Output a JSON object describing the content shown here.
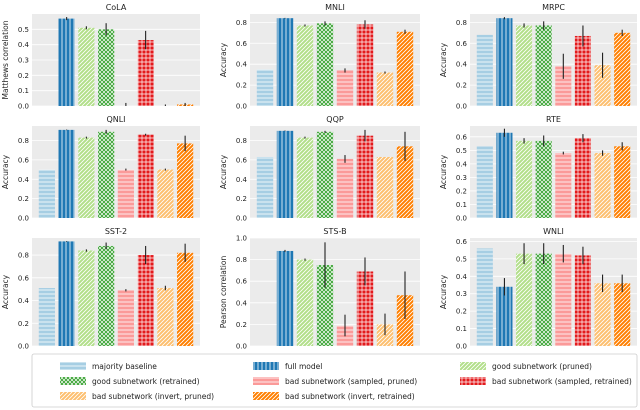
{
  "chart_data": {
    "type": "bar",
    "figure": "GLUE task results: subnetwork comparison (3x3 grid of bar charts)",
    "legend": {
      "placement": "bottom",
      "entries": [
        {
          "key": "maj",
          "label": "majority baseline"
        },
        {
          "key": "full",
          "label": "full model"
        },
        {
          "key": "good_p",
          "label": "good subnetwork (pruned)"
        },
        {
          "key": "good_r",
          "label": "good subnetwork (retrained)"
        },
        {
          "key": "bad_p",
          "label": "bad subnetwork (sampled, pruned)"
        },
        {
          "key": "bad_r",
          "label": "bad subnetwork (sampled, retrained)"
        },
        {
          "key": "inv_p",
          "label": "bad subnetwork (invert, pruned)"
        },
        {
          "key": "inv_r",
          "label": "bad subnetwork (invert, retrained)"
        }
      ]
    },
    "styles": {
      "maj": {
        "color": "#a6cee3",
        "hatch": "h"
      },
      "full": {
        "color": "#1f78b4",
        "hatch": "v"
      },
      "good_p": {
        "color": "#b2df8a",
        "hatch": "d"
      },
      "good_r": {
        "color": "#33a02c",
        "hatch": "x"
      },
      "bad_p": {
        "color": "#fb9a99",
        "hatch": "h"
      },
      "bad_r": {
        "color": "#e31a1c",
        "hatch": "g"
      },
      "inv_p": {
        "color": "#fdbf6f",
        "hatch": "d"
      },
      "inv_r": {
        "color": "#ff7f00",
        "hatch": "d"
      }
    },
    "panels": [
      {
        "title": "CoLA",
        "ylabel": "Matthews correlation",
        "ylim": [
          0,
          0.6
        ],
        "yticks": [
          "0.0",
          "0.1",
          "0.2",
          "0.3",
          "0.4",
          "0.5"
        ],
        "tick_values": [
          0,
          0.1,
          0.2,
          0.3,
          0.4,
          0.5
        ],
        "values": {
          "maj": 0.0,
          "full": 0.57,
          "good_p": 0.51,
          "good_r": 0.5,
          "bad_p": 0.0,
          "bad_r": 0.43,
          "inv_p": 0.0,
          "inv_r": 0.01
        },
        "err": {
          "maj": 0,
          "full": 0.01,
          "good_p": 0.01,
          "good_r": 0.04,
          "bad_p": 0.02,
          "bad_r": 0.06,
          "inv_p": 0.01,
          "inv_r": 0.01
        }
      },
      {
        "title": "MNLI",
        "ylabel": "Accuracy",
        "ylim": [
          0,
          0.88
        ],
        "yticks": [
          "0.0",
          "0.2",
          "0.4",
          "0.6",
          "0.8"
        ],
        "tick_values": [
          0,
          0.2,
          0.4,
          0.6,
          0.8
        ],
        "values": {
          "maj": 0.35,
          "full": 0.84,
          "good_p": 0.77,
          "good_r": 0.79,
          "bad_p": 0.34,
          "bad_r": 0.78,
          "inv_p": 0.32,
          "inv_r": 0.71
        },
        "err": {
          "maj": 0,
          "full": 0.003,
          "good_p": 0.01,
          "good_r": 0.02,
          "bad_p": 0.02,
          "bad_r": 0.04,
          "inv_p": 0.01,
          "inv_r": 0.02
        }
      },
      {
        "title": "MRPC",
        "ylabel": "Accuracy",
        "ylim": [
          0,
          0.88
        ],
        "yticks": [
          "0.0",
          "0.2",
          "0.4",
          "0.6",
          "0.8"
        ],
        "tick_values": [
          0,
          0.2,
          0.4,
          0.6,
          0.8
        ],
        "values": {
          "maj": 0.68,
          "full": 0.84,
          "good_p": 0.77,
          "good_r": 0.77,
          "bad_p": 0.38,
          "bad_r": 0.67,
          "inv_p": 0.39,
          "inv_r": 0.7
        },
        "err": {
          "maj": 0,
          "full": 0.01,
          "good_p": 0.02,
          "good_r": 0.04,
          "bad_p": 0.12,
          "bad_r": 0.1,
          "inv_p": 0.12,
          "inv_r": 0.03
        }
      },
      {
        "title": "QNLI",
        "ylabel": "Accuracy",
        "ylim": [
          0,
          0.95
        ],
        "yticks": [
          "0.0",
          "0.2",
          "0.4",
          "0.6",
          "0.8"
        ],
        "tick_values": [
          0,
          0.2,
          0.4,
          0.6,
          0.8
        ],
        "values": {
          "maj": 0.5,
          "full": 0.91,
          "good_p": 0.83,
          "good_r": 0.89,
          "bad_p": 0.5,
          "bad_r": 0.86,
          "inv_p": 0.5,
          "inv_r": 0.77
        },
        "err": {
          "maj": 0,
          "full": 0.003,
          "good_p": 0.01,
          "good_r": 0.02,
          "bad_p": 0.01,
          "bad_r": 0.01,
          "inv_p": 0.01,
          "inv_r": 0.08
        }
      },
      {
        "title": "QQP",
        "ylabel": "Accuracy",
        "ylim": [
          0,
          0.95
        ],
        "yticks": [
          "0.0",
          "0.2",
          "0.4",
          "0.6",
          "0.8"
        ],
        "tick_values": [
          0,
          0.2,
          0.4,
          0.6,
          0.8
        ],
        "values": {
          "maj": 0.63,
          "full": 0.9,
          "good_p": 0.83,
          "good_r": 0.89,
          "bad_p": 0.61,
          "bad_r": 0.85,
          "inv_p": 0.63,
          "inv_r": 0.74
        },
        "err": {
          "maj": 0,
          "full": 0.003,
          "good_p": 0.01,
          "good_r": 0.01,
          "bad_p": 0.04,
          "bad_r": 0.06,
          "inv_p": 0.0,
          "inv_r": 0.15
        }
      },
      {
        "title": "RTE",
        "ylabel": "Accuracy",
        "ylim": [
          0,
          0.68
        ],
        "yticks": [
          "0.0",
          "0.1",
          "0.2",
          "0.3",
          "0.4",
          "0.5",
          "0.6"
        ],
        "tick_values": [
          0,
          0.1,
          0.2,
          0.3,
          0.4,
          0.5,
          0.6
        ],
        "values": {
          "maj": 0.53,
          "full": 0.63,
          "good_p": 0.57,
          "good_r": 0.57,
          "bad_p": 0.48,
          "bad_r": 0.59,
          "inv_p": 0.48,
          "inv_r": 0.53
        },
        "err": {
          "maj": 0,
          "full": 0.03,
          "good_p": 0.02,
          "good_r": 0.04,
          "bad_p": 0.01,
          "bad_r": 0.03,
          "inv_p": 0.02,
          "inv_r": 0.03
        }
      },
      {
        "title": "SST-2",
        "ylabel": "Accuracy",
        "ylim": [
          0,
          0.95
        ],
        "yticks": [
          "0.0",
          "0.2",
          "0.4",
          "0.6",
          "0.8"
        ],
        "tick_values": [
          0,
          0.2,
          0.4,
          0.6,
          0.8
        ],
        "values": {
          "maj": 0.51,
          "full": 0.92,
          "good_p": 0.84,
          "good_r": 0.88,
          "bad_p": 0.49,
          "bad_r": 0.8,
          "inv_p": 0.51,
          "inv_r": 0.82
        },
        "err": {
          "maj": 0,
          "full": 0.003,
          "good_p": 0.01,
          "good_r": 0.03,
          "bad_p": 0.01,
          "bad_r": 0.08,
          "inv_p": 0.02,
          "inv_r": 0.08
        }
      },
      {
        "title": "STS-B",
        "ylabel": "Pearson correlation",
        "ylim": [
          0,
          1.0
        ],
        "yticks": [
          "0.0",
          "0.2",
          "0.4",
          "0.6",
          "0.8",
          "1.0"
        ],
        "tick_values": [
          0,
          0.2,
          0.4,
          0.6,
          0.8,
          1.0
        ],
        "values": {
          "maj": 0.0,
          "full": 0.88,
          "good_p": 0.8,
          "good_r": 0.75,
          "bad_p": 0.19,
          "bad_r": 0.69,
          "inv_p": 0.2,
          "inv_r": 0.47
        },
        "err": {
          "maj": 0,
          "full": 0.01,
          "good_p": 0.01,
          "good_r": 0.21,
          "bad_p": 0.1,
          "bad_r": 0.13,
          "inv_p": 0.1,
          "inv_r": 0.22
        }
      },
      {
        "title": "WNLI",
        "ylabel": "Accuracy",
        "ylim": [
          0,
          0.62
        ],
        "yticks": [
          "0.0",
          "0.1",
          "0.2",
          "0.3",
          "0.4",
          "0.5",
          "0.6"
        ],
        "tick_values": [
          0,
          0.1,
          0.2,
          0.3,
          0.4,
          0.5,
          0.6
        ],
        "values": {
          "maj": 0.56,
          "full": 0.34,
          "good_p": 0.53,
          "good_r": 0.53,
          "bad_p": 0.53,
          "bad_r": 0.52,
          "inv_p": 0.36,
          "inv_r": 0.36
        },
        "err": {
          "maj": 0,
          "full": 0.05,
          "good_p": 0.06,
          "good_r": 0.06,
          "bad_p": 0.05,
          "bad_r": 0.05,
          "inv_p": 0.05,
          "inv_r": 0.05
        }
      }
    ]
  }
}
